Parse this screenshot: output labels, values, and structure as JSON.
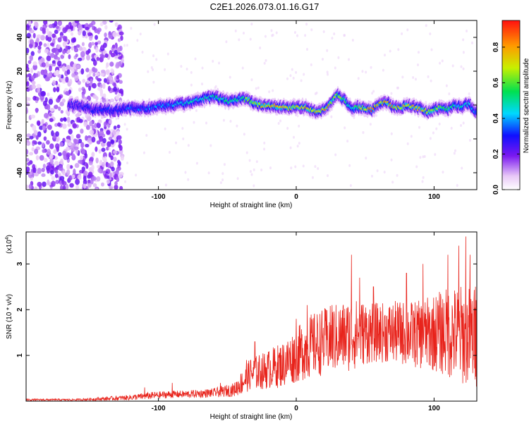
{
  "title": "C2E1.2026.073.01.16.G17",
  "colors": {
    "snr_line": "#e8231b",
    "axis": "#000000",
    "background": "#ffffff"
  },
  "chart_data": [
    {
      "type": "heatmap",
      "xlabel": "Height of straight line (km)",
      "ylabel": "Frequency (Hz)",
      "xlim": [
        -196,
        131
      ],
      "ylim": [
        -50,
        50
      ],
      "xticks": [
        -100,
        0,
        100
      ],
      "yticks": [
        -40,
        -20,
        0,
        20,
        40
      ],
      "colorbar": {
        "label": "Normalized spectral amplitude",
        "range": [
          0,
          0.95
        ],
        "ticks": [
          0.0,
          0.2,
          0.4,
          0.6,
          0.8
        ],
        "colormap": "rainbow"
      },
      "ridge_center_hz": [
        [
          -160,
          0
        ],
        [
          -150,
          -2
        ],
        [
          -140,
          -3
        ],
        [
          -130,
          -3
        ],
        [
          -120,
          -2
        ],
        [
          -110,
          -2
        ],
        [
          -100,
          -1
        ],
        [
          -90,
          0
        ],
        [
          -80,
          1
        ],
        [
          -70,
          3
        ],
        [
          -60,
          5
        ],
        [
          -55,
          4
        ],
        [
          -50,
          2
        ],
        [
          -45,
          3
        ],
        [
          -40,
          4
        ],
        [
          -35,
          3
        ],
        [
          -30,
          1
        ],
        [
          -25,
          0
        ],
        [
          -20,
          0
        ],
        [
          -15,
          -1
        ],
        [
          -10,
          -1
        ],
        [
          -5,
          -2
        ],
        [
          0,
          -1
        ],
        [
          5,
          -1
        ],
        [
          10,
          -2
        ],
        [
          15,
          -4
        ],
        [
          20,
          -3
        ],
        [
          25,
          1
        ],
        [
          30,
          6
        ],
        [
          35,
          3
        ],
        [
          40,
          -2
        ],
        [
          45,
          -1
        ],
        [
          50,
          -2
        ],
        [
          55,
          -3
        ],
        [
          60,
          1
        ],
        [
          65,
          2
        ],
        [
          70,
          -1
        ],
        [
          75,
          -2
        ],
        [
          80,
          0
        ],
        [
          85,
          -1
        ],
        [
          90,
          -2
        ],
        [
          95,
          -4
        ],
        [
          100,
          -3
        ],
        [
          105,
          -1
        ],
        [
          110,
          -3
        ],
        [
          115,
          0
        ],
        [
          120,
          -1
        ],
        [
          125,
          1
        ],
        [
          130,
          -4
        ]
      ],
      "ridge_peak_amplitude": [
        [
          -160,
          0.25
        ],
        [
          -120,
          0.35
        ],
        [
          -80,
          0.45
        ],
        [
          -40,
          0.55
        ],
        [
          -20,
          0.8
        ],
        [
          0,
          0.75
        ],
        [
          20,
          0.85
        ],
        [
          40,
          0.5
        ],
        [
          55,
          0.9
        ],
        [
          70,
          0.8
        ],
        [
          90,
          0.75
        ],
        [
          110,
          0.55
        ],
        [
          130,
          0.4
        ]
      ]
    },
    {
      "type": "line",
      "xlabel": "Height of straight line (km)",
      "ylabel": "SNR (10 * v/v)",
      "scale_label": "(x10",
      "scale_exp": "4",
      "xlim": [
        -196,
        131
      ],
      "ylim": [
        0,
        3.7
      ],
      "xticks": [
        -100,
        0,
        100
      ],
      "yticks": [
        1,
        2,
        3
      ],
      "envelope": {
        "x": [
          -196,
          -160,
          -140,
          -120,
          -105,
          -90,
          -80,
          -60,
          -45,
          -38,
          -33,
          -25,
          -10,
          0,
          10,
          25,
          40,
          50,
          60,
          75,
          90,
          100,
          110,
          120,
          131
        ],
        "mean": [
          0.03,
          0.03,
          0.05,
          0.08,
          0.12,
          0.15,
          0.15,
          0.18,
          0.25,
          0.45,
          0.6,
          0.65,
          0.8,
          1.0,
          1.2,
          1.35,
          1.45,
          1.5,
          1.5,
          1.5,
          1.45,
          1.5,
          1.5,
          1.45,
          1.4
        ],
        "amp": [
          0.02,
          0.02,
          0.04,
          0.06,
          0.08,
          0.08,
          0.08,
          0.1,
          0.15,
          0.3,
          0.35,
          0.4,
          0.5,
          0.6,
          0.7,
          0.75,
          0.8,
          0.7,
          0.65,
          0.7,
          0.75,
          0.85,
          1.0,
          1.1,
          1.1
        ]
      },
      "spikes": [
        [
          -110,
          0.3
        ],
        [
          -90,
          0.4
        ],
        [
          -55,
          0.4
        ],
        [
          -36,
          0.9
        ],
        [
          -30,
          1.3
        ],
        [
          0,
          1.8
        ],
        [
          8,
          2.1
        ],
        [
          26,
          2.1
        ],
        [
          40,
          3.2
        ],
        [
          46,
          2.7
        ],
        [
          56,
          2.5
        ],
        [
          80,
          2.8
        ],
        [
          92,
          3.0
        ],
        [
          110,
          3.2
        ],
        [
          118,
          3.4
        ],
        [
          123,
          3.6
        ],
        [
          126,
          3.2
        ],
        [
          130,
          2.5
        ]
      ]
    }
  ]
}
